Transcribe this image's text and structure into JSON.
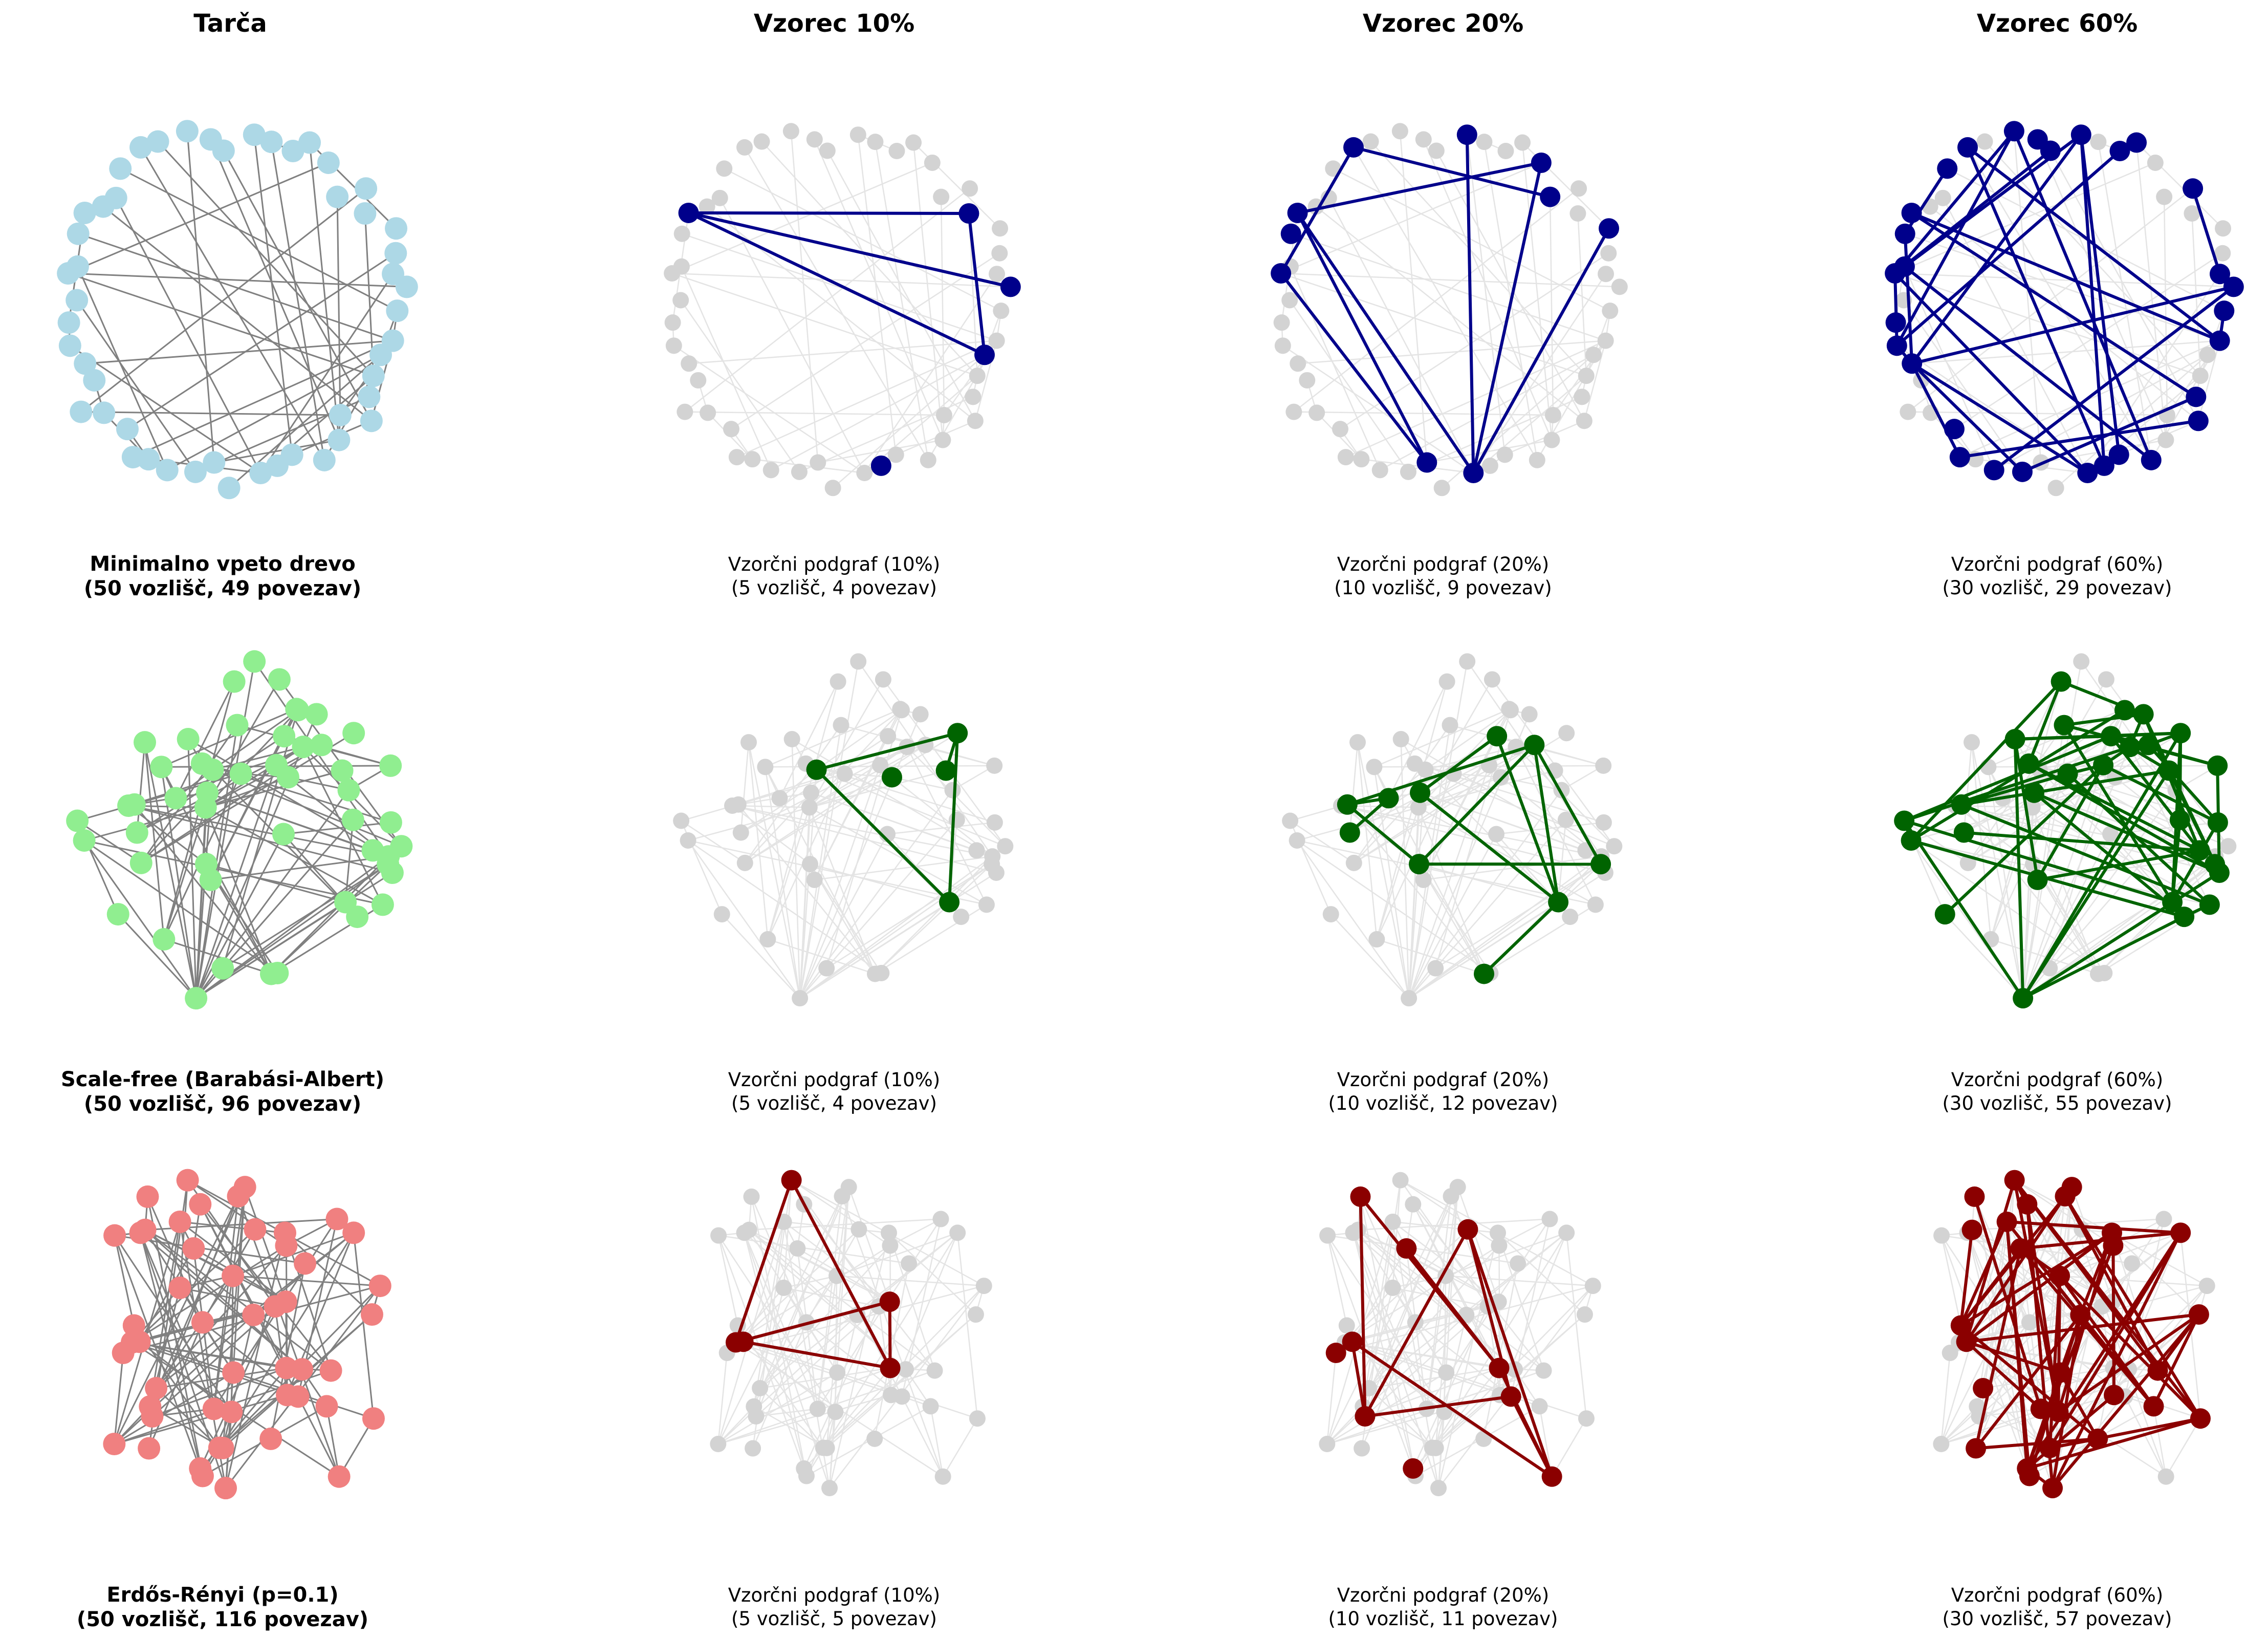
{
  "columns": [
    "Tarča",
    "Vzorec 10%",
    "Vzorec 20%",
    "Vzorec 60%"
  ],
  "rows": [
    {
      "name": "mst",
      "edge_color": "#808080",
      "node_color": "#add8e6",
      "highlight_color": "#00008b",
      "layout": "circle",
      "target_caption": [
        "Minimalno vpeto drevo",
        "(50 vozlišč, 49 povezav)"
      ],
      "samples": [
        {
          "caption": [
            "Vzorčni podgraf (10%)",
            "(5 vozlišč, 4 povezav)"
          ],
          "nodes": 5,
          "edges": 4
        },
        {
          "caption": [
            "Vzorčni podgraf (20%)",
            "(10 vozlišč, 9 povezav)"
          ],
          "nodes": 10,
          "edges": 9
        },
        {
          "caption": [
            "Vzorčni podgraf (60%)",
            "(30 vozlišč, 29 povezav)"
          ],
          "nodes": 30,
          "edges": 29
        }
      ]
    },
    {
      "name": "scale-free",
      "edge_color": "#808080",
      "node_color": "#90ee90",
      "highlight_color": "#006400",
      "layout": "cloud",
      "target_caption": [
        "Scale-free (Barabási-Albert)",
        "(50 vozlišč, 96 povezav)"
      ],
      "samples": [
        {
          "caption": [
            "Vzorčni podgraf (10%)",
            "(5 vozlišč, 4 povezav)"
          ],
          "nodes": 5,
          "edges": 4
        },
        {
          "caption": [
            "Vzorčni podgraf (20%)",
            "(10 vozlišč, 12 povezav)"
          ],
          "nodes": 10,
          "edges": 12
        },
        {
          "caption": [
            "Vzorčni podgraf (60%)",
            "(30 vozlišč, 55 povezav)"
          ],
          "nodes": 30,
          "edges": 55
        }
      ]
    },
    {
      "name": "erdos-renyi",
      "edge_color": "#808080",
      "node_color": "#f08080",
      "highlight_color": "#8b0000",
      "layout": "cloud",
      "target_caption": [
        "Erdős-Rényi (p=0.1)",
        "(50 vozlišč, 116 povezav)"
      ],
      "samples": [
        {
          "caption": [
            "Vzorčni podgraf (10%)",
            "(5 vozlišč, 5 povezav)"
          ],
          "nodes": 5,
          "edges": 5
        },
        {
          "caption": [
            "Vzorčni podgraf (20%)",
            "(10 vozlišč, 11 povezav)"
          ],
          "nodes": 10,
          "edges": 11
        },
        {
          "caption": [
            "Vzorčni podgraf (60%)",
            "(30 vozlišč, 57 povezav)"
          ],
          "nodes": 30,
          "edges": 57
        }
      ]
    }
  ],
  "target_graphs": [
    {
      "nodes": 50,
      "edges": 49
    },
    {
      "nodes": 50,
      "edges": 96
    },
    {
      "nodes": 50,
      "edges": 116
    }
  ],
  "faded_color": "#d3d3d3"
}
